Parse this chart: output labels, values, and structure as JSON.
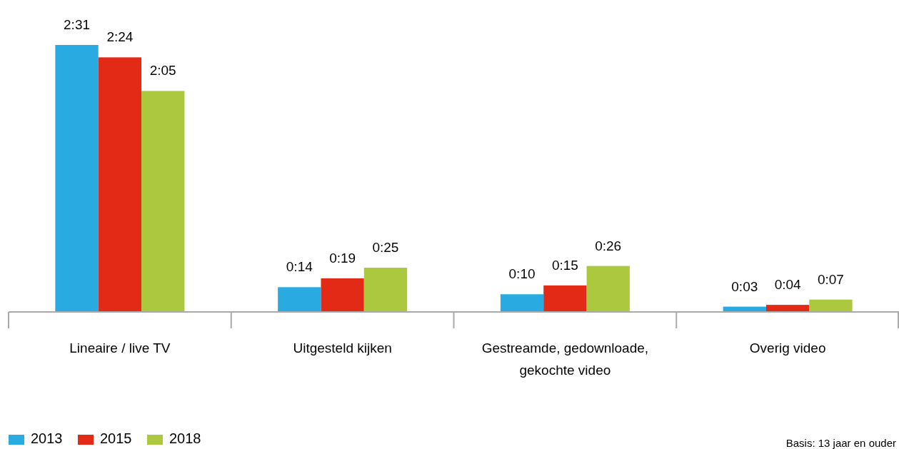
{
  "chart_data": {
    "type": "bar",
    "categories": [
      "Lineaire / live TV",
      "Uitgesteld kijken",
      "Gestreamde, gedownloade, gekochte video",
      "Overig video"
    ],
    "series": [
      {
        "name": "2013",
        "color": "#29abe2",
        "values": [
          151,
          14,
          10,
          3
        ],
        "value_labels": [
          "2:31",
          "0:14",
          "0:10",
          "0:03"
        ]
      },
      {
        "name": "2015",
        "color": "#e32a16",
        "values": [
          144,
          19,
          15,
          4
        ],
        "value_labels": [
          "2:24",
          "0:19",
          "0:15",
          "0:04"
        ]
      },
      {
        "name": "2018",
        "color": "#abc83f",
        "values": [
          125,
          25,
          26,
          7
        ],
        "value_labels": [
          "2:05",
          "0:25",
          "0:26",
          "0:07"
        ]
      }
    ],
    "legend": "bottom left",
    "annotations": [
      "Basis: 13 jaar en ouder"
    ]
  }
}
